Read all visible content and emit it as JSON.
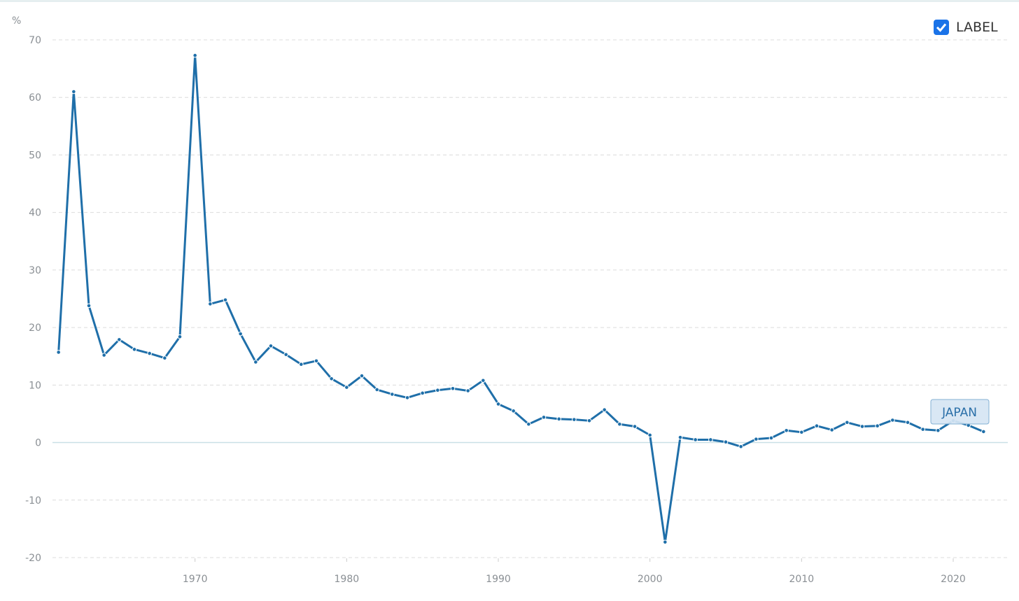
{
  "chart_data": {
    "type": "line",
    "y_label": "%",
    "legend_label": "LABEL",
    "x": [
      1961,
      1962,
      1963,
      1964,
      1965,
      1966,
      1967,
      1968,
      1969,
      1970,
      1971,
      1972,
      1973,
      1974,
      1975,
      1976,
      1977,
      1978,
      1979,
      1980,
      1981,
      1982,
      1983,
      1984,
      1985,
      1986,
      1987,
      1988,
      1989,
      1990,
      1991,
      1992,
      1993,
      1994,
      1995,
      1996,
      1997,
      1998,
      1999,
      2000,
      2001,
      2002,
      2003,
      2004,
      2005,
      2006,
      2007,
      2008,
      2009,
      2010,
      2011,
      2012,
      2013,
      2014,
      2015,
      2016,
      2017,
      2018,
      2019,
      2020,
      2021,
      2022
    ],
    "series": [
      {
        "name": "JAPAN",
        "color": "#1f6fa9",
        "values": [
          15.7,
          61,
          23.8,
          15.2,
          17.9,
          16.2,
          15.5,
          14.7,
          18.4,
          67.3,
          24.1,
          24.8,
          18.9,
          14.0,
          16.8,
          15.3,
          13.6,
          14.2,
          11.1,
          9.6,
          11.6,
          9.2,
          8.4,
          7.8,
          8.6,
          9.1,
          9.4,
          9.0,
          10.8,
          6.7,
          5.5,
          3.2,
          4.4,
          4.1,
          4.0,
          3.8,
          5.7,
          3.2,
          2.8,
          1.3,
          -17.3,
          0.9,
          0.5,
          0.5,
          0.1,
          -0.7,
          0.6,
          0.8,
          2.1,
          1.8,
          2.9,
          2.2,
          3.5,
          2.8,
          2.9,
          3.9,
          3.5,
          2.3,
          2.1,
          3.8,
          3.0,
          1.9
        ]
      }
    ],
    "xlim": [
      1960.6,
      2023.6
    ],
    "xticks": [
      1970,
      1980,
      1990,
      2000,
      2010,
      2020
    ],
    "ylim": [
      -20,
      70
    ],
    "yticks": [
      -20,
      -10,
      0,
      10,
      20,
      30,
      40,
      50,
      60,
      70
    ],
    "grid": true
  }
}
